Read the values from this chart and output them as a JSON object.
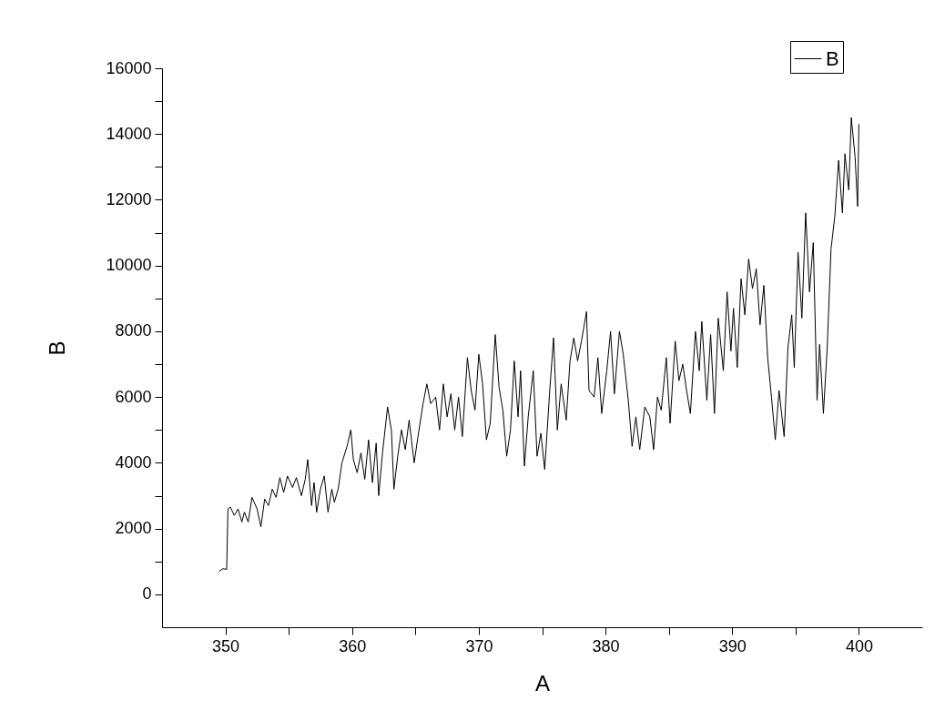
{
  "chart_data": {
    "type": "line",
    "xlabel": "A",
    "ylabel": "B",
    "x": [
      349.5,
      349.8,
      350.1,
      350.2,
      350.4,
      350.7,
      351.0,
      351.3,
      351.5,
      351.8,
      352.1,
      352.5,
      352.8,
      353.1,
      353.4,
      353.7,
      354.0,
      354.3,
      354.6,
      354.9,
      355.3,
      355.6,
      356.0,
      356.3,
      356.5,
      356.8,
      357.0,
      357.2,
      357.5,
      357.8,
      358.1,
      358.4,
      358.6,
      358.9,
      359.2,
      359.6,
      359.9,
      360.1,
      360.4,
      360.7,
      361.0,
      361.3,
      361.6,
      361.9,
      362.1,
      362.4,
      362.8,
      363.1,
      363.3,
      363.6,
      363.9,
      364.2,
      364.5,
      364.9,
      365.2,
      365.6,
      365.9,
      366.2,
      366.6,
      366.9,
      367.2,
      367.5,
      367.8,
      368.1,
      368.4,
      368.7,
      369.1,
      369.4,
      369.7,
      370.0,
      370.3,
      370.6,
      370.9,
      371.3,
      371.6,
      371.9,
      372.2,
      372.5,
      372.8,
      373.1,
      373.3,
      373.6,
      373.9,
      374.3,
      374.6,
      374.9,
      375.2,
      375.6,
      375.9,
      376.2,
      376.5,
      376.9,
      377.2,
      377.5,
      377.8,
      378.1,
      378.5,
      378.7,
      379.1,
      379.4,
      379.7,
      380.1,
      380.4,
      380.7,
      381.1,
      381.4,
      381.8,
      382.1,
      382.4,
      382.7,
      383.1,
      383.5,
      383.8,
      384.1,
      384.4,
      384.8,
      385.1,
      385.5,
      385.8,
      386.1,
      386.4,
      386.7,
      387.1,
      387.4,
      387.6,
      388.0,
      388.3,
      388.6,
      388.9,
      389.3,
      389.6,
      389.9,
      390.1,
      390.4,
      390.7,
      391.0,
      391.3,
      391.6,
      391.9,
      392.2,
      392.5,
      392.8,
      393.1,
      393.4,
      393.7,
      394.1,
      394.4,
      394.7,
      394.9,
      395.2,
      395.5,
      395.8,
      396.1,
      396.4,
      396.7,
      396.9,
      397.2,
      397.5,
      397.8,
      398.1,
      398.4,
      398.7,
      398.9,
      399.2,
      399.4,
      399.7,
      399.9,
      400.0
    ],
    "series": [
      {
        "name": "B",
        "color": "#000000",
        "values": [
          700,
          780,
          760,
          2600,
          2650,
          2400,
          2600,
          2200,
          2500,
          2200,
          2950,
          2600,
          2050,
          2900,
          2700,
          3200,
          2950,
          3550,
          3100,
          3600,
          3250,
          3550,
          3000,
          3500,
          4100,
          2700,
          3400,
          2500,
          3200,
          3600,
          2500,
          3200,
          2800,
          3200,
          4000,
          4500,
          5000,
          4100,
          3700,
          4300,
          3500,
          4700,
          3400,
          4600,
          3000,
          4300,
          5700,
          5000,
          3200,
          4200,
          5000,
          4400,
          5300,
          4000,
          4800,
          5800,
          6400,
          5800,
          6000,
          5000,
          6400,
          5400,
          6100,
          5000,
          6000,
          4800,
          7200,
          6200,
          5600,
          7300,
          6400,
          4700,
          5200,
          7900,
          6300,
          5600,
          4200,
          5000,
          7100,
          5400,
          6800,
          3900,
          5400,
          6800,
          4200,
          4900,
          3800,
          6200,
          7800,
          5000,
          6400,
          5300,
          7100,
          7800,
          7100,
          7700,
          8600,
          6200,
          6000,
          7200,
          5500,
          6800,
          8000,
          6100,
          8000,
          7300,
          5900,
          4500,
          5400,
          4400,
          5700,
          5400,
          4400,
          6000,
          5600,
          7200,
          5200,
          7700,
          6500,
          7000,
          6200,
          5500,
          8000,
          6800,
          8300,
          5900,
          7900,
          5500,
          8400,
          6800,
          9200,
          7400,
          8700,
          6900,
          9600,
          8500,
          10200,
          9300,
          9900,
          8200,
          9400,
          7200,
          6000,
          4700,
          6200,
          4800,
          7500,
          8500,
          6900,
          10400,
          8400,
          11600,
          9200,
          10700,
          5900,
          7600,
          5500,
          7500,
          10500,
          11500,
          13200,
          11600,
          13400,
          12300,
          14500,
          13300,
          11800,
          14300
        ]
      }
    ],
    "xlim": [
      345,
      405
    ],
    "xticks": [
      350,
      {
        "value": 355,
        "label": null
      },
      360,
      {
        "value": 365,
        "label": null
      },
      370,
      {
        "value": 375,
        "label": null
      },
      380,
      {
        "value": 385,
        "label": null
      },
      390,
      {
        "value": 395,
        "label": null
      },
      400
    ],
    "ylim": [
      -1000,
      16000
    ],
    "yticks": [
      0,
      {
        "value": 1000,
        "label": null
      },
      2000,
      {
        "value": 3000,
        "label": null
      },
      4000,
      {
        "value": 5000,
        "label": null
      },
      6000,
      {
        "value": 7000,
        "label": null
      },
      8000,
      {
        "value": 9000,
        "label": null
      },
      10000,
      {
        "value": 11000,
        "label": null
      },
      12000,
      {
        "value": 13000,
        "label": null
      },
      14000,
      {
        "value": 15000,
        "label": null
      },
      16000
    ],
    "grid": false,
    "legend": "top right",
    "marker": "none",
    "line_style": "solid"
  }
}
